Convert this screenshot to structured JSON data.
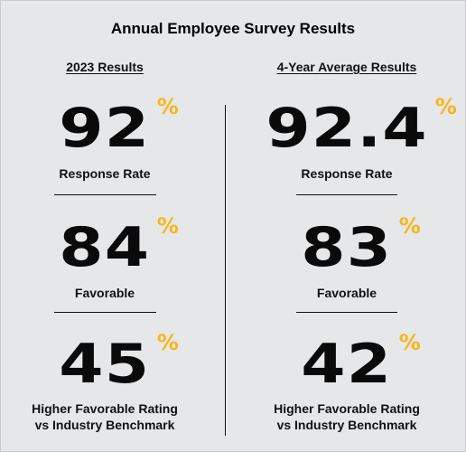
{
  "title": "Annual Employee Survey Results",
  "columns": [
    {
      "heading": "2023 Results",
      "stats": [
        {
          "value": "92",
          "unit": "%",
          "label": "Response Rate"
        },
        {
          "value": "84",
          "unit": "%",
          "label": "Favorable"
        },
        {
          "value": "45",
          "unit": "%",
          "label_line1": "Higher Favorable Rating",
          "label_line2": "vs Industry Benchmark"
        }
      ]
    },
    {
      "heading": "4-Year Average Results",
      "stats": [
        {
          "value": "92.4",
          "unit": "%",
          "label": "Response Rate"
        },
        {
          "value": "83",
          "unit": "%",
          "label": "Favorable"
        },
        {
          "value": "42",
          "unit": "%",
          "label_line1": "Higher Favorable Rating",
          "label_line2": "vs Industry Benchmark"
        }
      ]
    }
  ],
  "colors": {
    "background": "#e6e7e8",
    "accent": "#f5b71a",
    "text": "#111111"
  }
}
